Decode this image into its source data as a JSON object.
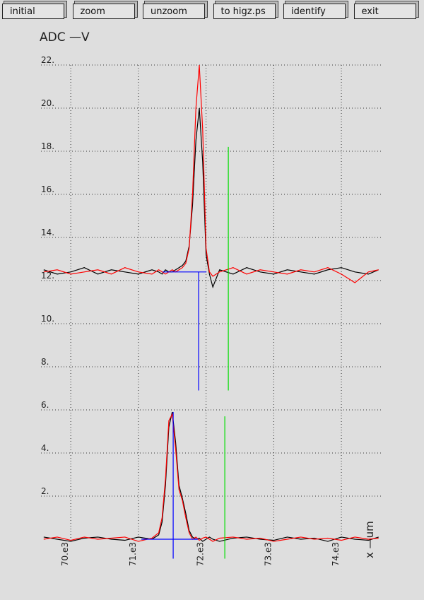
{
  "buttons": [
    "initial",
    "zoom",
    "unzoom",
    "to higz.ps",
    "identify",
    "exit"
  ],
  "chart_data": {
    "type": "line",
    "y_label": "ADC  —V",
    "x_label": "x  —um",
    "xlim": [
      69560,
      74605
    ],
    "ylim": [
      0,
      22
    ],
    "xticks": [
      {
        "value": 70000,
        "label": "70.e3"
      },
      {
        "value": 71000,
        "label": "71.e3"
      },
      {
        "value": 72000,
        "label": "72.e3"
      },
      {
        "value": 73000,
        "label": "73.e3"
      },
      {
        "value": 74000,
        "label": "74.e3"
      }
    ],
    "yticks": [
      {
        "value": 2,
        "label": "2."
      },
      {
        "value": 4,
        "label": "4."
      },
      {
        "value": 6,
        "label": "6."
      },
      {
        "value": 8,
        "label": "8."
      },
      {
        "value": 10,
        "label": "10."
      },
      {
        "value": 12,
        "label": "12."
      },
      {
        "value": 14,
        "label": "14."
      },
      {
        "value": 16,
        "label": "16."
      },
      {
        "value": 18,
        "label": "18."
      },
      {
        "value": 20,
        "label": "20."
      },
      {
        "value": 22,
        "label": "22."
      }
    ],
    "grid": true,
    "series": [
      {
        "color": "#000000",
        "x": [
          69600,
          69800,
          70000,
          70200,
          70400,
          70600,
          70800,
          71000,
          71200,
          71300,
          71350,
          71400,
          71450,
          71500,
          71550,
          71600,
          71650,
          71700,
          71750,
          71800,
          71850,
          71900,
          71950,
          72000,
          72050,
          72100,
          72200,
          72400,
          72600,
          72800,
          73000,
          73200,
          73400,
          73600,
          73800,
          74000,
          74200,
          74400,
          74550
        ],
        "values": [
          12.5,
          12.3,
          12.4,
          12.6,
          12.3,
          12.5,
          12.4,
          12.3,
          12.5,
          12.4,
          12.3,
          12.5,
          12.4,
          12.4,
          12.5,
          12.6,
          12.7,
          12.9,
          13.6,
          15.5,
          18.5,
          20.0,
          17.5,
          13.2,
          12.3,
          11.7,
          12.5,
          12.3,
          12.6,
          12.4,
          12.3,
          12.5,
          12.4,
          12.3,
          12.5,
          12.6,
          12.4,
          12.3,
          12.5
        ]
      },
      {
        "color": "#ff0000",
        "x": [
          69600,
          69800,
          70000,
          70200,
          70400,
          70600,
          70800,
          71000,
          71200,
          71300,
          71350,
          71400,
          71450,
          71500,
          71550,
          71600,
          71650,
          71700,
          71750,
          71800,
          71850,
          71900,
          71950,
          72000,
          72050,
          72100,
          72200,
          72400,
          72600,
          72800,
          73000,
          73200,
          73400,
          73600,
          73800,
          74000,
          74200,
          74400,
          74550
        ],
        "values": [
          12.4,
          12.5,
          12.3,
          12.4,
          12.5,
          12.3,
          12.6,
          12.4,
          12.3,
          12.5,
          12.4,
          12.3,
          12.4,
          12.5,
          12.4,
          12.5,
          12.6,
          12.8,
          13.5,
          16,
          20,
          22,
          19,
          13.5,
          12.4,
          12.2,
          12.4,
          12.6,
          12.3,
          12.5,
          12.4,
          12.3,
          12.5,
          12.4,
          12.6,
          12.3,
          11.9,
          12.4,
          12.5
        ]
      },
      {
        "color": "#000000",
        "x": [
          69600,
          69800,
          70000,
          70200,
          70400,
          70600,
          70800,
          71000,
          71200,
          71300,
          71350,
          71400,
          71450,
          71500,
          71550,
          71600,
          71650,
          71700,
          71750,
          71800,
          71850,
          71900,
          71950,
          72000,
          72050,
          72100,
          72200,
          72400,
          72600,
          72800,
          73000,
          73200,
          73400,
          73600,
          73800,
          74000,
          74200,
          74400,
          74550
        ],
        "values": [
          0.1,
          0,
          -0.1,
          0.05,
          0.1,
          0,
          -0.05,
          0.1,
          0,
          0.2,
          0.8,
          2.5,
          5.2,
          5.9,
          4.5,
          2.5,
          1.9,
          1.2,
          0.4,
          0.1,
          0,
          0.05,
          -0.1,
          0,
          0.1,
          0,
          -0.1,
          0.05,
          0.1,
          0,
          -0.05,
          0.1,
          0,
          0.05,
          -0.1,
          0.1,
          0,
          -0.05,
          0.1
        ]
      },
      {
        "color": "#ff0000",
        "x": [
          69600,
          69800,
          70000,
          70200,
          70400,
          70600,
          70800,
          71000,
          71200,
          71300,
          71350,
          71400,
          71450,
          71500,
          71550,
          71600,
          71650,
          71700,
          71750,
          71800,
          71850,
          71900,
          71950,
          72000,
          72050,
          72100,
          72200,
          72400,
          72600,
          72800,
          73000,
          73200,
          73400,
          73600,
          73800,
          74000,
          74200,
          74400,
          74550
        ],
        "values": [
          0,
          0.1,
          -0.05,
          0.1,
          0,
          0.05,
          0.1,
          -0.1,
          0.05,
          0.3,
          1.0,
          2.8,
          5.5,
          5.8,
          4.2,
          2.3,
          1.8,
          1.0,
          0.3,
          0,
          0.1,
          -0.05,
          0.05,
          0.1,
          0,
          -0.1,
          0.05,
          0.1,
          0,
          0.05,
          -0.1,
          0,
          0.1,
          0,
          0.05,
          -0.05,
          0.1,
          0,
          0.05
        ]
      },
      {
        "color": "#0000ff",
        "x": [
          71358,
          72005
        ],
        "values": [
          12.4,
          12.4
        ]
      },
      {
        "color": "#0000ff",
        "x": [
          71890,
          71890
        ],
        "values": [
          6.9,
          12.4
        ]
      },
      {
        "color": "#00dd00",
        "x": [
          72329,
          72329
        ],
        "values": [
          6.9,
          18.2
        ]
      },
      {
        "color": "#0000ff",
        "x": [
          71044,
          71880
        ],
        "values": [
          0,
          0
        ]
      },
      {
        "color": "#0000ff",
        "x": [
          71514,
          71514
        ],
        "values": [
          -0.9,
          5.9
        ]
      },
      {
        "color": "#00dd00",
        "x": [
          72277,
          72277
        ],
        "values": [
          -0.9,
          5.7
        ]
      }
    ]
  }
}
